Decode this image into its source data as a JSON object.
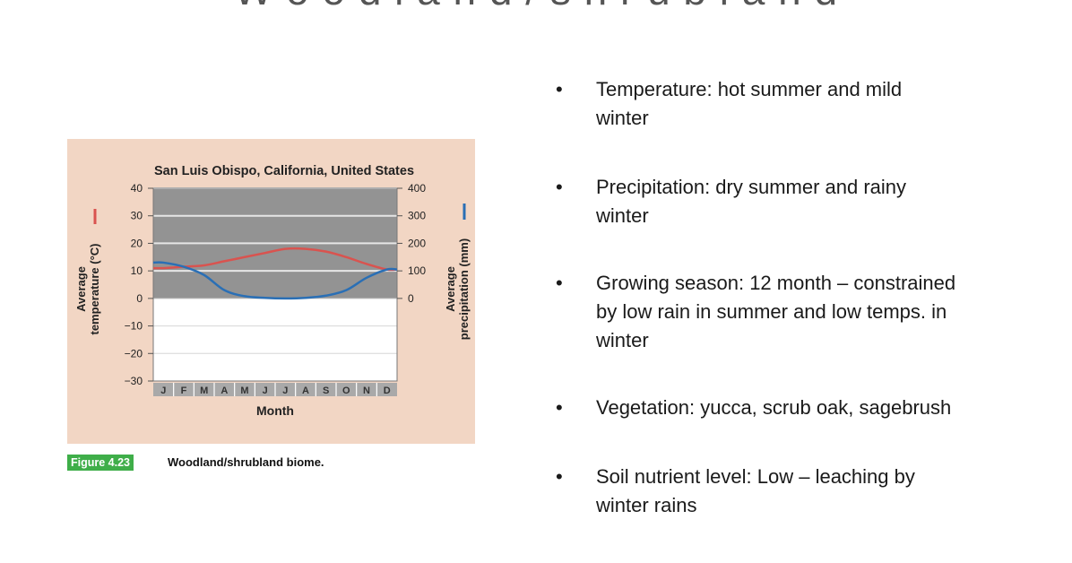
{
  "slide": {
    "title": "W o o d l a n d / s h r u b l a n d"
  },
  "figure": {
    "caption_tag": "Figure 4.23",
    "caption_text": "Woodland/shrubland biome."
  },
  "chart_data": {
    "type": "line",
    "title": "San Luis Obispo, California, United States",
    "xlabel": "Month",
    "categories": [
      "J",
      "F",
      "M",
      "A",
      "M",
      "J",
      "J",
      "A",
      "S",
      "O",
      "N",
      "D"
    ],
    "y_left": {
      "label_line1": "Average",
      "label_line2": "temperature (°C)",
      "range": [
        -30,
        40
      ],
      "ticks": [
        40,
        30,
        20,
        10,
        0,
        -10,
        -20,
        -30
      ],
      "tick_labels": [
        "40",
        "30",
        "20",
        "10",
        "0",
        "−10",
        "−20",
        "−30"
      ]
    },
    "y_right": {
      "label_line1": "Average",
      "label_line2": "precipitation (mm)",
      "range": [
        0,
        400
      ],
      "ticks": [
        400,
        300,
        200,
        100,
        0
      ],
      "tick_labels": [
        "400",
        "300",
        "200",
        "100",
        "0"
      ]
    },
    "series": [
      {
        "axis": "left",
        "color": "#d9534f",
        "values": [
          11,
          11.5,
          12,
          13.5,
          15,
          16.5,
          18,
          18,
          17,
          15,
          12.5,
          10.5
        ]
      },
      {
        "axis": "right",
        "color": "#2a6fb5",
        "values": [
          130,
          115,
          85,
          30,
          8,
          2,
          0,
          2,
          10,
          30,
          75,
          105
        ]
      }
    ],
    "grid": true,
    "colors": {
      "shaded_region": "#939393",
      "lower_region": "#ffffff",
      "month_band": "#a9a9a9",
      "panel": "#f2d6c4"
    }
  },
  "bullets": [
    {
      "line1": "Temperature:  hot summer and mild",
      "line2": "winter",
      "line3": ""
    },
    {
      "line1": "Precipitation:  dry summer and rainy",
      "line2": "winter",
      "line3": ""
    },
    {
      "line1": "Growing season: 12 month – constrained",
      "line2": "by  low rain in summer and low temps. in",
      "line3": "winter"
    },
    {
      "line1": "Vegetation: yucca, scrub oak, sagebrush",
      "line2": "",
      "line3": ""
    },
    {
      "line1": "Soil nutrient level:  Low – leaching by",
      "line2": "winter rains",
      "line3": ""
    }
  ]
}
